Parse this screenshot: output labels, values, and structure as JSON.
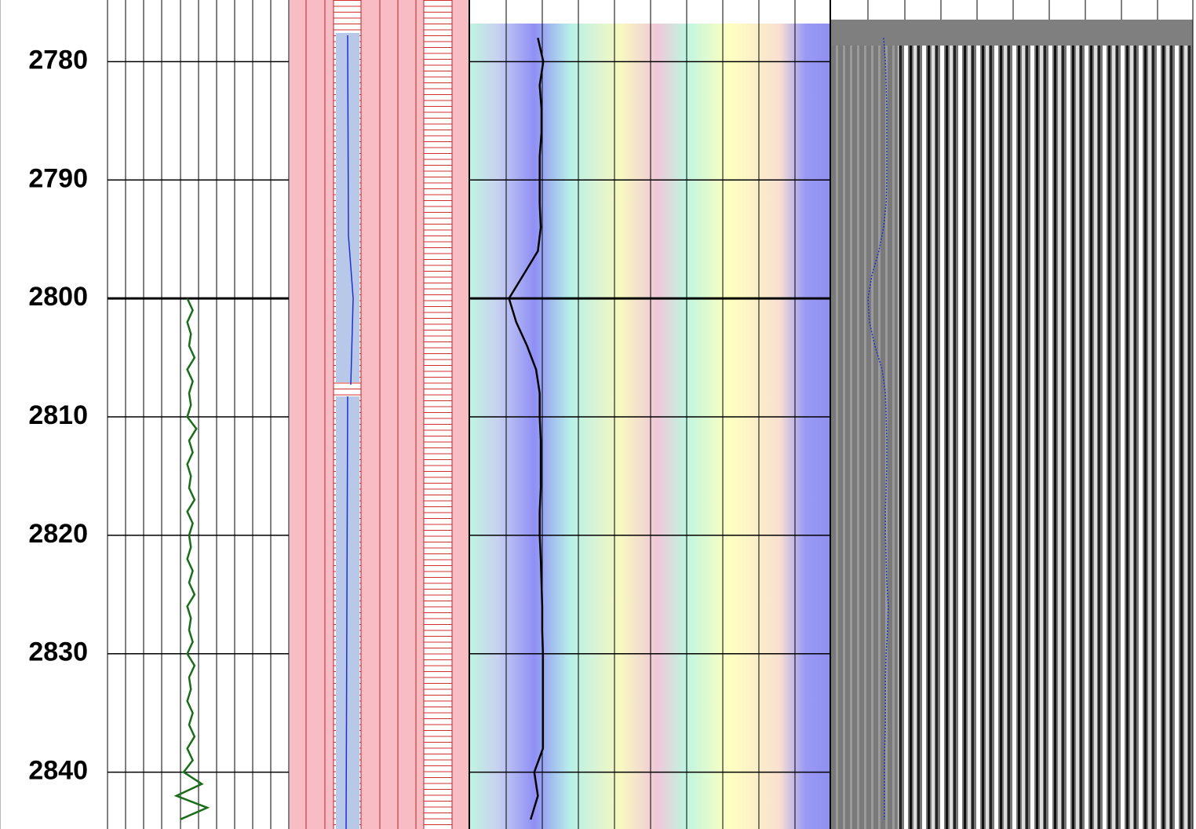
{
  "chart_data": {
    "type": "well_log",
    "ylim": [
      2774.8,
      2844.8
    ],
    "yticks": [
      2780,
      2790,
      2800,
      2810,
      2820,
      2830,
      2840
    ],
    "grid": true,
    "series": [
      {
        "color": "#1a6e1a",
        "xlim": [
          0,
          100
        ],
        "x": [
          2800,
          2801,
          2802,
          2803,
          2804,
          2805,
          2806,
          2807,
          2808,
          2809,
          2810,
          2811,
          2812,
          2813,
          2814,
          2815,
          2816,
          2817,
          2818,
          2819,
          2820,
          2821,
          2822,
          2823,
          2824,
          2825,
          2826,
          2827,
          2828,
          2829,
          2830,
          2831,
          2832,
          2833,
          2834,
          2835,
          2836,
          2837,
          2838,
          2839,
          2840,
          2841,
          2842,
          2843,
          2844
        ],
        "values": [
          44,
          47,
          44,
          46,
          45,
          48,
          44,
          47,
          45,
          46,
          44,
          49,
          45,
          47,
          44,
          46,
          45,
          48,
          44,
          47,
          45,
          46,
          44,
          47,
          45,
          48,
          44,
          46,
          45,
          47,
          44,
          48,
          45,
          46,
          44,
          47,
          45,
          48,
          44,
          47,
          42,
          52,
          38,
          55,
          40
        ]
      },
      {
        "color": "#000000",
        "xlim": [
          0,
          100
        ],
        "x": [
          2778,
          2780,
          2782,
          2784,
          2786,
          2788,
          2790,
          2792,
          2794,
          2796,
          2798,
          2800,
          2802,
          2804,
          2806,
          2808,
          2810,
          2812,
          2814,
          2816,
          2818,
          2820,
          2822,
          2824,
          2826,
          2828,
          2830,
          2832,
          2834,
          2836,
          2838,
          2840,
          2842,
          2844
        ],
        "values": [
          19,
          20.5,
          19.5,
          20,
          20,
          19.5,
          19.5,
          19.5,
          19.8,
          19,
          15,
          11,
          13,
          16,
          18.5,
          19.5,
          19.5,
          19.8,
          19.8,
          19.8,
          19.5,
          19.5,
          19.8,
          20,
          20.2,
          20.2,
          20.4,
          20.4,
          20.4,
          20.4,
          20.4,
          18,
          19,
          17
        ]
      },
      {
        "color": "#1a2fd0",
        "xlim": [
          0,
          100
        ],
        "x": [
          2778,
          2780,
          2782,
          2784,
          2786,
          2788,
          2790,
          2792,
          2794,
          2796,
          2798,
          2800,
          2802,
          2804,
          2806,
          2808,
          2810,
          2812,
          2814,
          2816,
          2818,
          2820,
          2822,
          2824,
          2826,
          2828,
          2830,
          2832,
          2834,
          2836,
          2838,
          2840,
          2842,
          2844
        ],
        "values": [
          14.7,
          15.2,
          15.4,
          15.6,
          15.6,
          15.6,
          15.6,
          15.4,
          14.7,
          13.4,
          11.5,
          10.4,
          10.8,
          12.3,
          14.3,
          15.2,
          15.4,
          15.6,
          15.6,
          15.4,
          15.2,
          15.2,
          15.4,
          15.6,
          16.0,
          15.8,
          15.4,
          15.2,
          15.2,
          15.2,
          15.0,
          14.9,
          14.9,
          14.9
        ]
      }
    ]
  }
}
